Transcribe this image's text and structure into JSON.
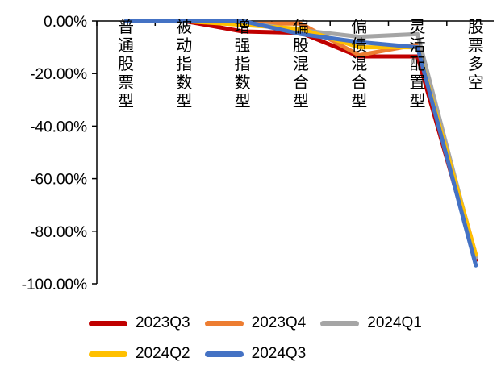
{
  "chart_data": {
    "type": "line",
    "categories": [
      "普通股票型",
      "被动指数型",
      "增强指数型",
      "偏股混合型",
      "偏债混合型",
      "灵活配置型",
      "股票多空"
    ],
    "ylim": [
      -100,
      0
    ],
    "yticks": [
      0,
      -20,
      -40,
      -60,
      -80,
      -100
    ],
    "ytick_labels": [
      "0.00%",
      "-20.00%",
      "-40.00%",
      "-60.00%",
      "-80.00%",
      "-100.00%"
    ],
    "grid": false,
    "legend_position": "bottom",
    "series": [
      {
        "name": "2023Q3",
        "color": "#C00000",
        "values": [
          0,
          0,
          -4,
          -4.5,
          -13.5,
          -13.5,
          -91
        ]
      },
      {
        "name": "2023Q4",
        "color": "#ED7D31",
        "values": [
          0,
          0,
          -1,
          -1,
          -13,
          -9,
          -89
        ]
      },
      {
        "name": "2024Q1",
        "color": "#A5A5A5",
        "values": [
          0,
          0,
          -0.5,
          -3.5,
          -6,
          -5,
          -90
        ]
      },
      {
        "name": "2024Q2",
        "color": "#FFC000",
        "values": [
          0,
          0,
          -1.5,
          -3,
          -10,
          -10,
          -89
        ]
      },
      {
        "name": "2024Q3",
        "color": "#4472C4",
        "values": [
          0,
          0,
          0,
          -5,
          -8,
          -10,
          -93
        ]
      }
    ]
  }
}
